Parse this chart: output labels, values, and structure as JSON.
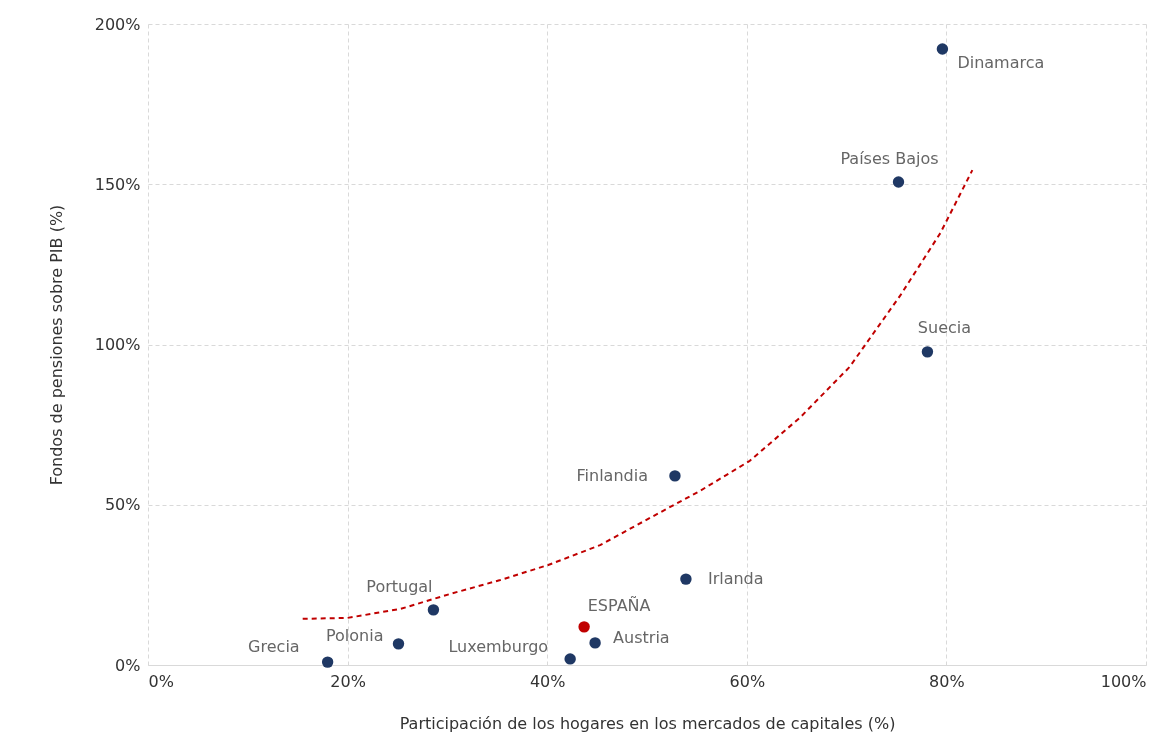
{
  "chart_data": {
    "type": "scatter",
    "xlabel": "Participación de los hogares en los mercados de capitales (%)",
    "ylabel": "Fondos de pensiones sobre PIB (%)",
    "xlim": [
      0,
      100
    ],
    "ylim": [
      0,
      200
    ],
    "xticks": [
      {
        "value": 0,
        "label": "0%"
      },
      {
        "value": 20,
        "label": "20%"
      },
      {
        "value": 40,
        "label": "40%"
      },
      {
        "value": 60,
        "label": "60%"
      },
      {
        "value": 80,
        "label": "80%"
      },
      {
        "value": 100,
        "label": "100%"
      }
    ],
    "yticks": [
      {
        "value": 0,
        "label": "0%"
      },
      {
        "value": 50,
        "label": "50%"
      },
      {
        "value": 100,
        "label": "100%"
      },
      {
        "value": 150,
        "label": "150%"
      },
      {
        "value": 200,
        "label": "200%"
      }
    ],
    "grid": true,
    "series": [
      {
        "marker": "circle",
        "x": [
          79.6,
          75.2,
          78.1,
          52.8,
          53.9,
          43.7,
          44.8,
          42.3,
          28.6,
          25.1,
          18.0
        ],
        "values": [
          192.2,
          150.7,
          97.7,
          59.0,
          26.8,
          11.9,
          6.9,
          1.9,
          17.2,
          6.6,
          0.9
        ],
        "colors": [
          "#1f3864",
          "#1f3864",
          "#1f3864",
          "#1f3864",
          "#1f3864",
          "#c00000",
          "#1f3864",
          "#1f3864",
          "#1f3864",
          "#1f3864",
          "#1f3864"
        ],
        "value_labels": [
          "Dinamarca",
          "Países Bajos",
          "Suecia",
          "Finlandia",
          "Irlanda",
          "ESPAÑA",
          "Austria",
          "Luxemburgo",
          "Portugal",
          "Polonia",
          "Grecia"
        ]
      },
      {
        "type": "line",
        "color": "#c00000",
        "line_style": "dashed",
        "x": [
          15.5,
          20,
          25.3,
          30.3,
          35.3,
          40.1,
          45.3,
          50.3,
          55.3,
          60.3,
          65.3,
          70.3,
          75.4,
          79.4,
          82.6
        ],
        "values": [
          14.4,
          14.7,
          17.5,
          22.2,
          26.5,
          31.2,
          37.4,
          45.9,
          54.3,
          63.7,
          77.1,
          93.0,
          115.4,
          134.8,
          154.4
        ]
      }
    ]
  }
}
